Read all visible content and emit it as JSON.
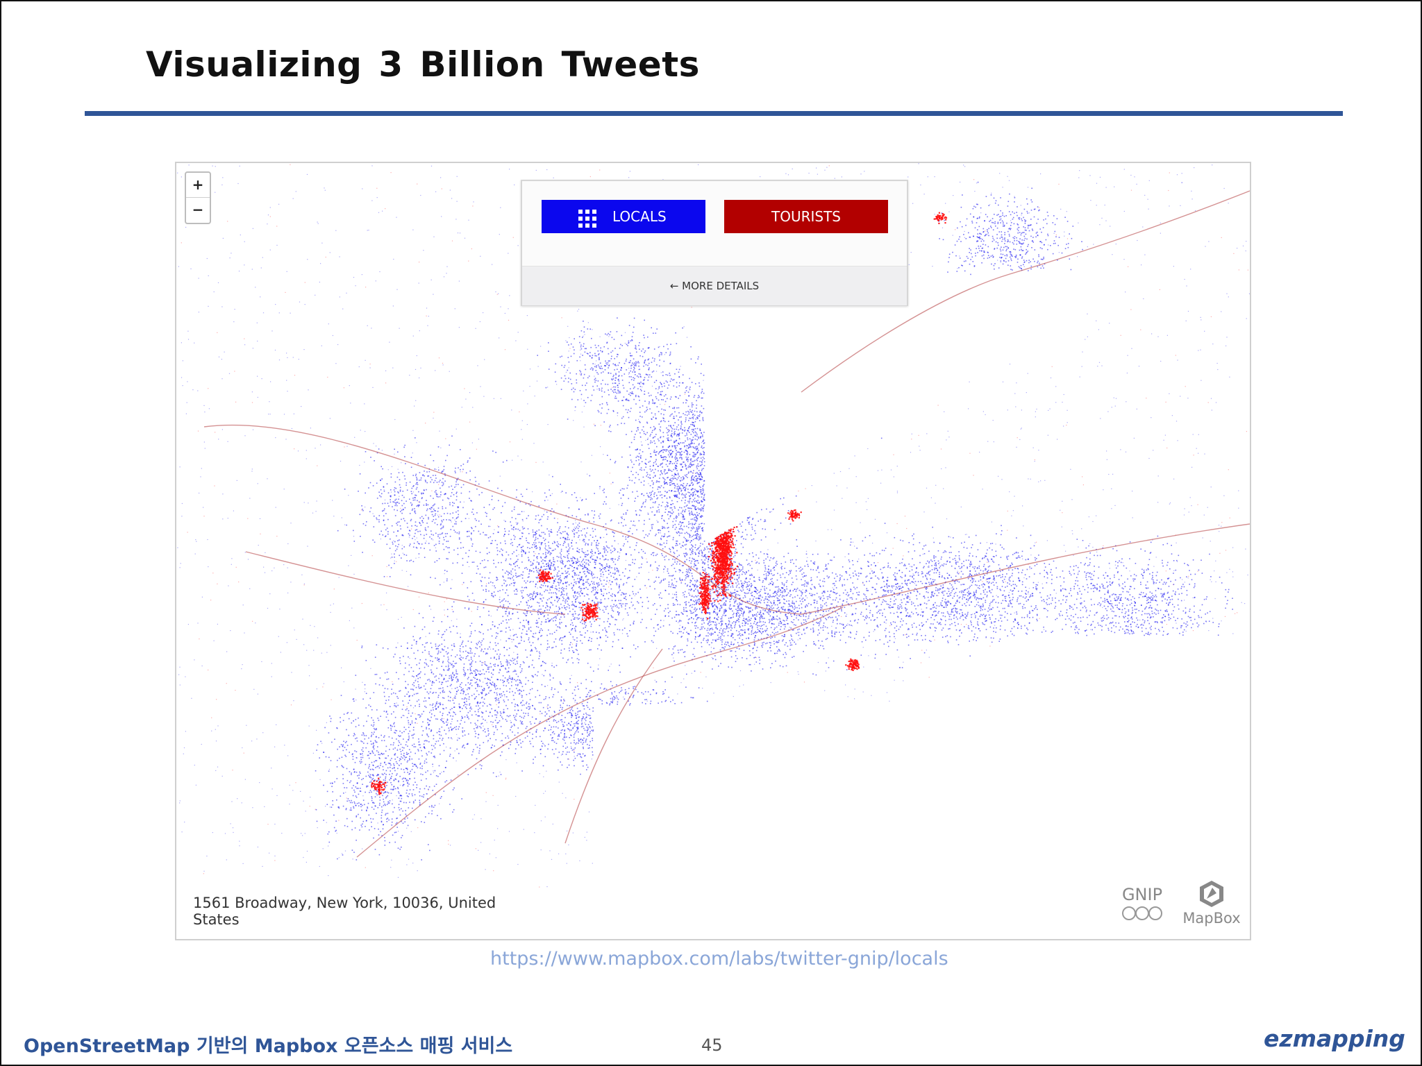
{
  "slide": {
    "title": "Visualizing 3 Billion Tweets",
    "footer_left": "OpenStreetMap 기반의 Mapbox 오픈소스 매핑 서비스",
    "page_number": "45",
    "brand": "ezmapping",
    "accent_color": "#2f5597"
  },
  "map": {
    "zoom_in_label": "+",
    "zoom_out_label": "−",
    "locals_label": "LOCALS",
    "tourists_label": "TOURISTS",
    "more_details_label": "← MORE DETAILS",
    "address": "1561 Broadway, New York, 10036, United States",
    "gnip_label": "GNIP",
    "mapbox_label": "MapBox",
    "locals_color": "#0b07ee",
    "tourists_color": "#b20000",
    "icons": [
      "grid-icon",
      "gnip-logo-icon",
      "mapbox-logo-icon"
    ]
  },
  "source_link": "https://www.mapbox.com/labs/twitter-gnip/locals"
}
